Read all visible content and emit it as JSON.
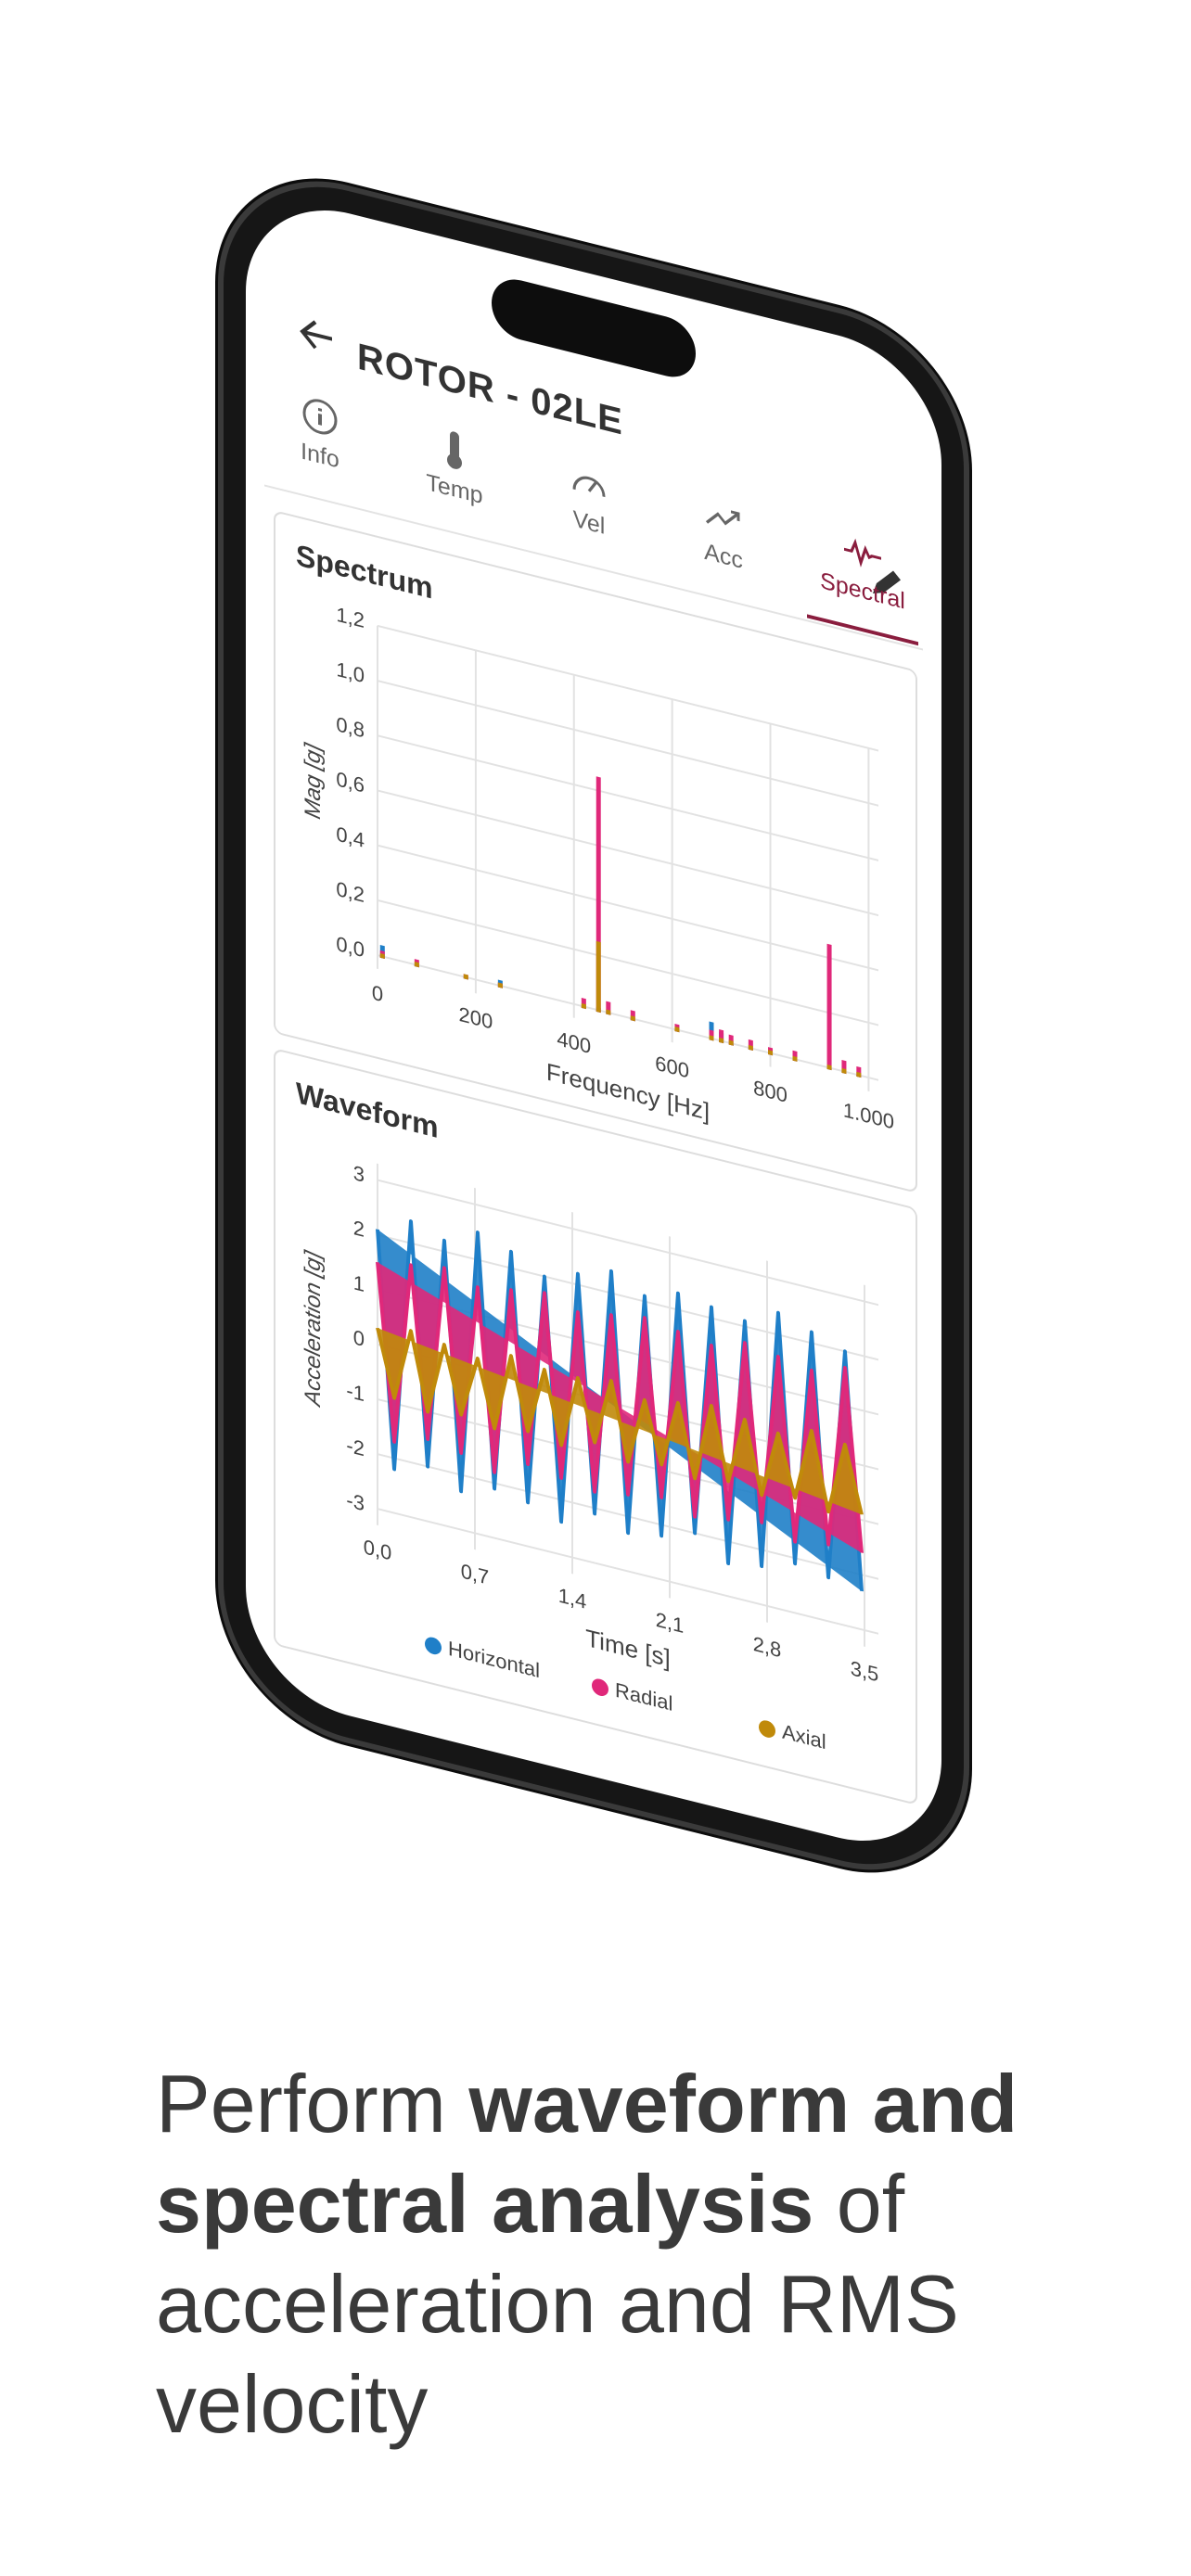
{
  "header": {
    "title": "ROTOR - 02LE"
  },
  "tabs": [
    "Info",
    "Temp",
    "Vel",
    "Acc",
    "Spectral"
  ],
  "chart_data": [
    {
      "type": "bar",
      "title": "Spectrum",
      "x_label": "Frequency [Hz]",
      "y_label": "Mag [g]",
      "x": [
        10,
        80,
        180,
        250,
        420,
        450,
        470,
        520,
        610,
        680,
        700,
        720,
        760,
        800,
        850,
        920,
        950,
        980
      ],
      "series": [
        {
          "name": "Horizontal",
          "color": "#1f7fc8",
          "values": [
            0.04,
            0,
            0,
            0.02,
            0,
            0.01,
            0,
            0,
            0,
            0.06,
            0.03,
            0,
            0,
            0,
            0,
            0,
            0,
            0
          ]
        },
        {
          "name": "Radial",
          "color": "#e0287a",
          "values": [
            0.02,
            0.02,
            0.01,
            0.01,
            0.03,
            0.85,
            0.04,
            0.03,
            0.02,
            0.03,
            0.04,
            0.03,
            0.03,
            0.02,
            0.03,
            0.45,
            0.04,
            0.03
          ]
        },
        {
          "name": "Axial",
          "color": "#c08a0a",
          "values": [
            0.01,
            0.01,
            0.01,
            0.01,
            0.01,
            0.25,
            0.01,
            0.01,
            0.01,
            0.01,
            0.01,
            0.01,
            0.01,
            0.01,
            0.01,
            0.01,
            0.01,
            0.01
          ]
        }
      ],
      "xlim": [
        0,
        1020
      ],
      "ylim": [
        -0.05,
        1.2
      ],
      "xticks": [
        0,
        200,
        400,
        600,
        800,
        {
          "value": 1000,
          "label": "1.000"
        }
      ],
      "yticks": [
        {
          "value": 0,
          "label": "0,0"
        },
        {
          "value": 0.2,
          "label": "0,2"
        },
        {
          "value": 0.4,
          "label": "0,4"
        },
        {
          "value": 0.6,
          "label": "0,6"
        },
        {
          "value": 0.8,
          "label": "0,8"
        },
        {
          "value": 1.0,
          "label": "1,0"
        },
        {
          "value": 1.2,
          "label": "1,2"
        }
      ],
      "grid": true,
      "legend": false
    },
    {
      "type": "line",
      "title": "Waveform",
      "x_label": "Time [s]",
      "y_label": "Acceleration [g]",
      "x": [
        0,
        0.12,
        0.24,
        0.36,
        0.48,
        0.6,
        0.72,
        0.84,
        0.96,
        1.08,
        1.2,
        1.32,
        1.44,
        1.56,
        1.68,
        1.8,
        1.92,
        2.04,
        2.16,
        2.28,
        2.4,
        2.52,
        2.64,
        2.76,
        2.88,
        3.0,
        3.12,
        3.24,
        3.36,
        3.48
      ],
      "series": [
        {
          "name": "Horizontal",
          "color": "#1f7fc8",
          "values": [
            2.1,
            -2.2,
            2.4,
            -2.0,
            2.2,
            -2.3,
            2.5,
            -2.1,
            2.3,
            -2.2,
            2.0,
            -2.4,
            2.2,
            -2.1,
            2.4,
            -2.3,
            2.1,
            -2.2,
            2.3,
            -2.0,
            2.2,
            -2.4,
            2.1,
            -2.3,
            2.4,
            -2.1,
            2.2,
            -2.2,
            2.0,
            -2.3
          ]
        },
        {
          "name": "Radial",
          "color": "#e0287a",
          "values": [
            1.5,
            -1.7,
            1.6,
            -1.5,
            1.7,
            -1.6,
            1.5,
            -1.8,
            1.6,
            -1.5,
            1.7,
            -1.6,
            1.5,
            -1.7,
            1.6,
            -1.6,
            1.7,
            -1.5,
            1.6,
            -1.7,
            1.5,
            -1.6,
            1.7,
            -1.5,
            1.6,
            -1.7,
            1.5,
            -1.6,
            1.7,
            -1.6
          ]
        },
        {
          "name": "Axial",
          "color": "#c08a0a",
          "values": [
            0.3,
            -0.9,
            0.4,
            -1.0,
            0.3,
            -0.9,
            0.2,
            -1.0,
            0.4,
            -0.9,
            0.3,
            -1.0,
            0.3,
            -0.8,
            0.4,
            -1.0,
            0.2,
            -0.9,
            0.3,
            -1.0,
            0.4,
            -0.9,
            0.3,
            -1.0,
            0.2,
            -0.9,
            0.4,
            -1.0,
            0.3,
            -0.9
          ]
        }
      ],
      "xlim": [
        0,
        3.6
      ],
      "ylim": [
        -3.3,
        3.3
      ],
      "xticks": [
        {
          "value": 0,
          "label": "0,0"
        },
        {
          "value": 0.7,
          "label": "0,7"
        },
        {
          "value": 1.4,
          "label": "1,4"
        },
        {
          "value": 2.1,
          "label": "2,1"
        },
        {
          "value": 2.8,
          "label": "2,8"
        },
        {
          "value": 3.5,
          "label": "3,5"
        }
      ],
      "yticks": [
        -3,
        -2,
        -1,
        0,
        1,
        2,
        3
      ],
      "grid": true,
      "legend": true
    }
  ],
  "caption": [
    "Perform",
    "waveform and spectral analysis",
    "of acceleration and RMS velocity"
  ]
}
